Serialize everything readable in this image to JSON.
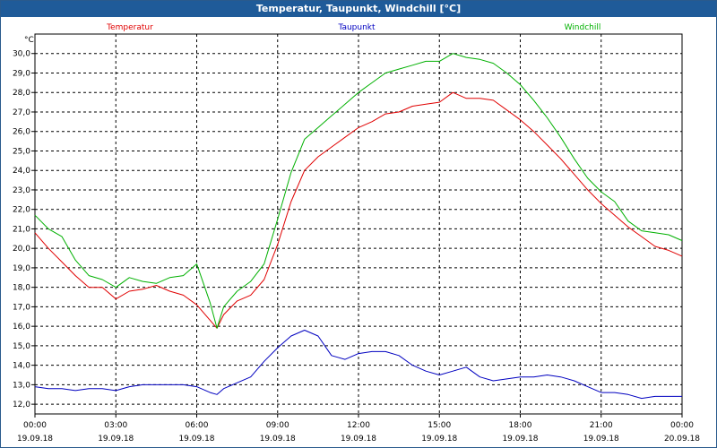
{
  "window": {
    "title": "Temperatur, Taupunkt, Windchill [°C]"
  },
  "chart_data": {
    "type": "line",
    "title": "Temperatur, Taupunkt, Windchill [°C]",
    "ylabel": "°C",
    "ylim": [
      11.5,
      31.0
    ],
    "yticks": [
      "12,0",
      "13,0",
      "14,0",
      "15,0",
      "16,0",
      "17,0",
      "18,0",
      "19,0",
      "20,0",
      "21,0",
      "22,0",
      "23,0",
      "24,0",
      "25,0",
      "26,0",
      "27,0",
      "28,0",
      "29,0",
      "30,0"
    ],
    "xticks": [
      {
        "time": "00:00",
        "date": "19.09.18"
      },
      {
        "time": "03:00",
        "date": "19.09.18"
      },
      {
        "time": "06:00",
        "date": "19.09.18"
      },
      {
        "time": "09:00",
        "date": "19.09.18"
      },
      {
        "time": "12:00",
        "date": "19.09.18"
      },
      {
        "time": "15:00",
        "date": "19.09.18"
      },
      {
        "time": "18:00",
        "date": "19.09.18"
      },
      {
        "time": "21:00",
        "date": "19.09.18"
      },
      {
        "time": "00:00",
        "date": "20.09.18"
      }
    ],
    "x_hours": [
      0,
      0.5,
      1,
      1.5,
      2,
      2.5,
      3,
      3.5,
      4,
      4.5,
      5,
      5.5,
      6,
      6.5,
      6.75,
      7,
      7.5,
      8,
      8.5,
      9,
      9.5,
      10,
      10.5,
      11,
      11.5,
      12,
      12.5,
      13,
      13.5,
      14,
      14.5,
      15,
      15.5,
      16,
      16.5,
      17,
      17.5,
      18,
      18.5,
      19,
      19.5,
      20,
      20.5,
      21,
      21.5,
      22,
      22.5,
      23,
      23.5,
      24
    ],
    "grid": true,
    "series": [
      {
        "name": "Temperatur",
        "color": "#e00000",
        "values": [
          20.8,
          20.0,
          19.3,
          18.6,
          18.0,
          18.0,
          17.4,
          17.8,
          17.9,
          18.1,
          17.8,
          17.6,
          17.1,
          16.3,
          15.9,
          16.6,
          17.3,
          17.6,
          18.4,
          20.2,
          22.4,
          24.0,
          24.7,
          25.2,
          25.7,
          26.2,
          26.5,
          26.9,
          27.0,
          27.3,
          27.4,
          27.5,
          28.0,
          27.7,
          27.7,
          27.6,
          27.1,
          26.6,
          26.0,
          25.3,
          24.6,
          23.8,
          23.0,
          22.3,
          21.7,
          21.1,
          20.6,
          20.1,
          19.9,
          19.6
        ]
      },
      {
        "name": "Taupunkt",
        "color": "#0000c0",
        "values": [
          12.9,
          12.8,
          12.8,
          12.7,
          12.8,
          12.8,
          12.7,
          12.9,
          13.0,
          13.0,
          13.0,
          13.0,
          12.9,
          12.6,
          12.5,
          12.8,
          13.1,
          13.4,
          14.2,
          14.9,
          15.5,
          15.8,
          15.5,
          14.5,
          14.3,
          14.6,
          14.7,
          14.7,
          14.5,
          14.0,
          13.7,
          13.5,
          13.7,
          13.9,
          13.4,
          13.2,
          13.3,
          13.4,
          13.4,
          13.5,
          13.4,
          13.2,
          12.9,
          12.6,
          12.6,
          12.5,
          12.3,
          12.4,
          12.4,
          12.4
        ]
      },
      {
        "name": "Windchill",
        "color": "#00b000",
        "values": [
          21.7,
          21.0,
          20.6,
          19.4,
          18.6,
          18.4,
          18.0,
          18.5,
          18.3,
          18.2,
          18.5,
          18.6,
          19.2,
          17.2,
          15.9,
          17.0,
          17.8,
          18.3,
          19.2,
          21.5,
          23.9,
          25.6,
          26.2,
          26.8,
          27.4,
          28.0,
          28.5,
          29.0,
          29.2,
          29.4,
          29.6,
          29.6,
          30.0,
          29.8,
          29.7,
          29.5,
          29.0,
          28.4,
          27.6,
          26.7,
          25.7,
          24.6,
          23.6,
          22.9,
          22.4,
          21.4,
          20.9,
          20.8,
          20.7,
          20.4
        ]
      }
    ]
  }
}
